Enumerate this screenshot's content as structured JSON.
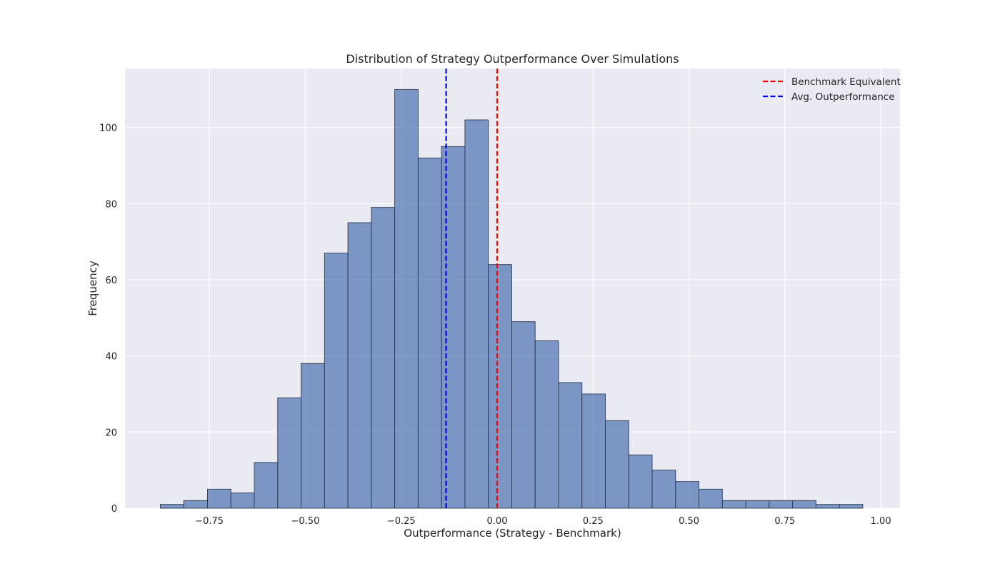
{
  "chart_data": {
    "type": "bar",
    "title": "Distribution of Strategy Outperformance Over Simulations",
    "xlabel": "Outperformance (Strategy - Benchmark)",
    "ylabel": "Frequency",
    "xlim": [
      -0.97,
      1.05
    ],
    "ylim": [
      0,
      115.5
    ],
    "grid": true,
    "legend_position": "top-right",
    "xticks": [
      {
        "value": -0.75,
        "label": "−0.75"
      },
      {
        "value": -0.5,
        "label": "−0.50"
      },
      {
        "value": -0.25,
        "label": "−0.25"
      },
      {
        "value": 0.0,
        "label": "0.00"
      },
      {
        "value": 0.25,
        "label": "0.25"
      },
      {
        "value": 0.5,
        "label": "0.50"
      },
      {
        "value": 0.75,
        "label": "0.75"
      },
      {
        "value": 1.0,
        "label": "1.00"
      }
    ],
    "yticks": [
      {
        "value": 0,
        "label": "0"
      },
      {
        "value": 20,
        "label": "20"
      },
      {
        "value": 40,
        "label": "40"
      },
      {
        "value": 60,
        "label": "60"
      },
      {
        "value": 80,
        "label": "80"
      },
      {
        "value": 100,
        "label": "100"
      }
    ],
    "bins": [
      {
        "x0": -0.878,
        "x1": -0.817,
        "count": 1
      },
      {
        "x0": -0.817,
        "x1": -0.755,
        "count": 2
      },
      {
        "x0": -0.755,
        "x1": -0.694,
        "count": 5
      },
      {
        "x0": -0.694,
        "x1": -0.633,
        "count": 4
      },
      {
        "x0": -0.633,
        "x1": -0.572,
        "count": 12
      },
      {
        "x0": -0.572,
        "x1": -0.511,
        "count": 29
      },
      {
        "x0": -0.511,
        "x1": -0.45,
        "count": 38
      },
      {
        "x0": -0.45,
        "x1": -0.389,
        "count": 67
      },
      {
        "x0": -0.389,
        "x1": -0.328,
        "count": 75
      },
      {
        "x0": -0.328,
        "x1": -0.267,
        "count": 79
      },
      {
        "x0": -0.267,
        "x1": -0.206,
        "count": 110
      },
      {
        "x0": -0.206,
        "x1": -0.145,
        "count": 92
      },
      {
        "x0": -0.145,
        "x1": -0.084,
        "count": 95
      },
      {
        "x0": -0.084,
        "x1": -0.023,
        "count": 102
      },
      {
        "x0": -0.023,
        "x1": 0.038,
        "count": 64
      },
      {
        "x0": 0.038,
        "x1": 0.099,
        "count": 49
      },
      {
        "x0": 0.099,
        "x1": 0.16,
        "count": 44
      },
      {
        "x0": 0.16,
        "x1": 0.221,
        "count": 33
      },
      {
        "x0": 0.221,
        "x1": 0.282,
        "count": 30
      },
      {
        "x0": 0.282,
        "x1": 0.343,
        "count": 23
      },
      {
        "x0": 0.343,
        "x1": 0.404,
        "count": 14
      },
      {
        "x0": 0.404,
        "x1": 0.465,
        "count": 10
      },
      {
        "x0": 0.465,
        "x1": 0.526,
        "count": 7
      },
      {
        "x0": 0.526,
        "x1": 0.587,
        "count": 5
      },
      {
        "x0": 0.587,
        "x1": 0.648,
        "count": 2
      },
      {
        "x0": 0.648,
        "x1": 0.709,
        "count": 2
      },
      {
        "x0": 0.709,
        "x1": 0.77,
        "count": 2
      },
      {
        "x0": 0.77,
        "x1": 0.831,
        "count": 2
      },
      {
        "x0": 0.831,
        "x1": 0.892,
        "count": 1
      },
      {
        "x0": 0.892,
        "x1": 0.953,
        "count": 1
      }
    ],
    "vlines": [
      {
        "name": "Benchmark Equivalent",
        "x": 0.0,
        "color": "#ff0000",
        "style": "dashed"
      },
      {
        "name": "Avg. Outperformance",
        "x": -0.133,
        "color": "#0000ff",
        "style": "dashed"
      }
    ],
    "colors": {
      "bar_fill": "#4c72b0",
      "bar_edge": "#2a3a52",
      "plot_background": "#eaeaf2",
      "grid": "#ffffff"
    }
  }
}
